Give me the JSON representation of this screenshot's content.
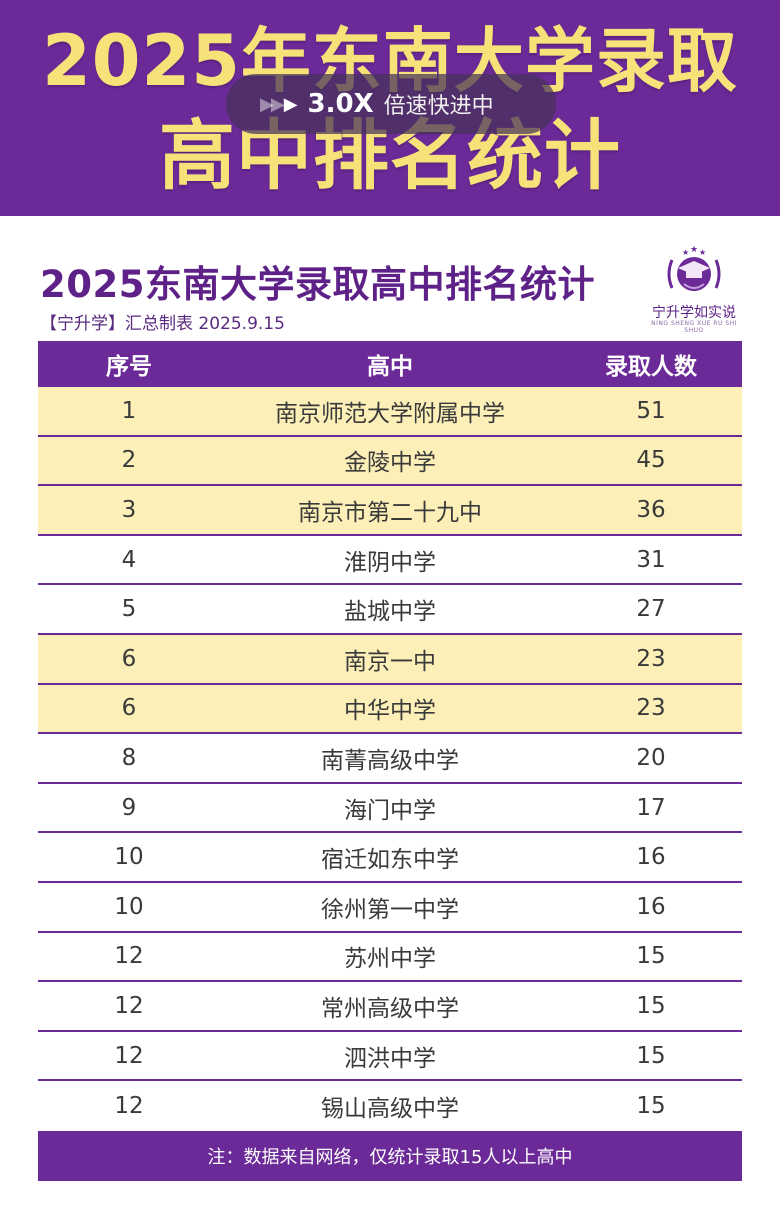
{
  "banner": {
    "line1": "2025年东南大学录取",
    "line2": "高中排名统计"
  },
  "overlay": {
    "speed": "3.0X",
    "label": "倍速快进中"
  },
  "card": {
    "title": "2025东南大学录取高中排名统计",
    "subtitle": "【宁升学】汇总制表 2025.9.15"
  },
  "logo": {
    "name": "宁升学如实说",
    "small": "NING SHENG XUE RU SHI SHUO"
  },
  "table": {
    "headers": [
      "序号",
      "高中",
      "录取人数"
    ],
    "rows": [
      {
        "rank": "1",
        "school": "南京师范大学附属中学",
        "count": "51"
      },
      {
        "rank": "2",
        "school": "金陵中学",
        "count": "45"
      },
      {
        "rank": "3",
        "school": "南京市第二十九中",
        "count": "36"
      },
      {
        "rank": "4",
        "school": "淮阴中学",
        "count": "31"
      },
      {
        "rank": "5",
        "school": "盐城中学",
        "count": "27"
      },
      {
        "rank": "6",
        "school": "南京一中",
        "count": "23"
      },
      {
        "rank": "6",
        "school": "中华中学",
        "count": "23"
      },
      {
        "rank": "8",
        "school": "南菁高级中学",
        "count": "20"
      },
      {
        "rank": "9",
        "school": "海门中学",
        "count": "17"
      },
      {
        "rank": "10",
        "school": "宿迁如东中学",
        "count": "16"
      },
      {
        "rank": "10",
        "school": "徐州第一中学",
        "count": "16"
      },
      {
        "rank": "12",
        "school": "苏州中学",
        "count": "15"
      },
      {
        "rank": "12",
        "school": "常州高级中学",
        "count": "15"
      },
      {
        "rank": "12",
        "school": "泗洪中学",
        "count": "15"
      },
      {
        "rank": "12",
        "school": "锡山高级中学",
        "count": "15"
      }
    ]
  },
  "footnote": "注：数据来自网络，仅统计录取15人以上高中",
  "colors": {
    "purple": "#6b2a98",
    "gold": "#f7e27a",
    "highlight": "#fcefb8"
  }
}
